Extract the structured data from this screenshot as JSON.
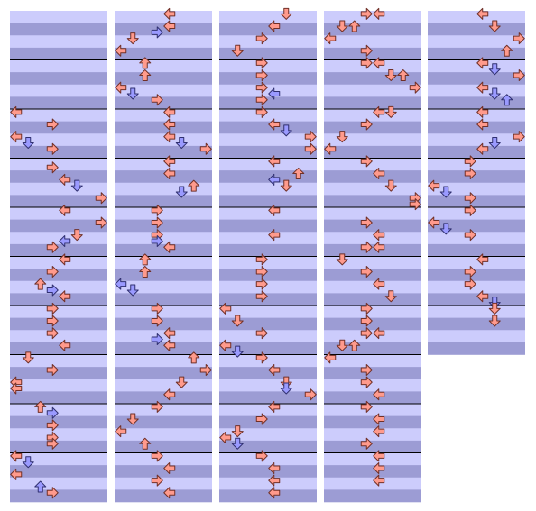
{
  "stepchart": {
    "lanes": [
      "left",
      "down",
      "up",
      "right",
      "left",
      "down",
      "up",
      "right"
    ],
    "colors": [
      "#ff9a8c",
      "#9a9aff"
    ],
    "columns": [
      {
        "measures": 10,
        "notes": [
          [
            2,
            0,
            0,
            0
          ],
          [
            2,
            2,
            3,
            0
          ],
          [
            2,
            4,
            0,
            0
          ],
          [
            2,
            5,
            1,
            1
          ],
          [
            2,
            6,
            3,
            0
          ],
          [
            3,
            1,
            3,
            0
          ],
          [
            3,
            3,
            4,
            0
          ],
          [
            3,
            4,
            5,
            1
          ],
          [
            3,
            6,
            7,
            0
          ],
          [
            4,
            0,
            4,
            0
          ],
          [
            4,
            2,
            7,
            0
          ],
          [
            4,
            4,
            5,
            0
          ],
          [
            4,
            5,
            4,
            1
          ],
          [
            4,
            6,
            3,
            0
          ],
          [
            5,
            0,
            4,
            0
          ],
          [
            5,
            2,
            3,
            0
          ],
          [
            5,
            4,
            2,
            0
          ],
          [
            5,
            5,
            3,
            1
          ],
          [
            5,
            6,
            4,
            0
          ],
          [
            6,
            0,
            3,
            0
          ],
          [
            6,
            2,
            3,
            0
          ],
          [
            6,
            4,
            3,
            0
          ],
          [
            6,
            6,
            4,
            0
          ],
          [
            7,
            0,
            1,
            0
          ],
          [
            7,
            2,
            3,
            0
          ],
          [
            7,
            4,
            0,
            0
          ],
          [
            7,
            5,
            0,
            0
          ],
          [
            8,
            0,
            2,
            0
          ],
          [
            8,
            1,
            3,
            1
          ],
          [
            8,
            3,
            3,
            0
          ],
          [
            8,
            5,
            3,
            0
          ],
          [
            8,
            6,
            3,
            0
          ],
          [
            9,
            0,
            0,
            0
          ],
          [
            9,
            1,
            1,
            1
          ],
          [
            9,
            3,
            0,
            0
          ],
          [
            9,
            5,
            2,
            1
          ],
          [
            9,
            6,
            3,
            0
          ]
        ]
      },
      {
        "measures": 10,
        "notes": [
          [
            0,
            0,
            4,
            0
          ],
          [
            0,
            2,
            4,
            0
          ],
          [
            0,
            3,
            3,
            1
          ],
          [
            0,
            4,
            1,
            0
          ],
          [
            0,
            6,
            0,
            0
          ],
          [
            1,
            0,
            2,
            0
          ],
          [
            1,
            2,
            2,
            0
          ],
          [
            1,
            4,
            0,
            0
          ],
          [
            1,
            5,
            1,
            1
          ],
          [
            1,
            6,
            3,
            0
          ],
          [
            2,
            0,
            4,
            0
          ],
          [
            2,
            2,
            4,
            0
          ],
          [
            2,
            4,
            4,
            0
          ],
          [
            2,
            5,
            5,
            1
          ],
          [
            2,
            6,
            7,
            0
          ],
          [
            3,
            0,
            4,
            0
          ],
          [
            3,
            2,
            4,
            0
          ],
          [
            3,
            4,
            6,
            0
          ],
          [
            3,
            5,
            5,
            1
          ],
          [
            4,
            0,
            3,
            0
          ],
          [
            4,
            2,
            3,
            0
          ],
          [
            4,
            4,
            3,
            0
          ],
          [
            4,
            5,
            3,
            1
          ],
          [
            4,
            6,
            4,
            0
          ],
          [
            5,
            0,
            2,
            0
          ],
          [
            5,
            2,
            2,
            0
          ],
          [
            5,
            4,
            0,
            1
          ],
          [
            5,
            5,
            1,
            1
          ],
          [
            6,
            0,
            3,
            0
          ],
          [
            6,
            2,
            3,
            0
          ],
          [
            6,
            4,
            4,
            0
          ],
          [
            6,
            5,
            3,
            1
          ],
          [
            6,
            6,
            4,
            0
          ],
          [
            7,
            0,
            6,
            0
          ],
          [
            7,
            2,
            7,
            0
          ],
          [
            7,
            4,
            5,
            0
          ],
          [
            7,
            6,
            4,
            0
          ],
          [
            8,
            0,
            3,
            0
          ],
          [
            8,
            2,
            1,
            0
          ],
          [
            8,
            4,
            0,
            0
          ],
          [
            8,
            6,
            2,
            0
          ],
          [
            9,
            0,
            3,
            0
          ],
          [
            9,
            2,
            4,
            0
          ],
          [
            9,
            4,
            3,
            0
          ],
          [
            9,
            6,
            4,
            0
          ]
        ]
      },
      {
        "measures": 10,
        "notes": [
          [
            0,
            0,
            5,
            0
          ],
          [
            0,
            2,
            4,
            0
          ],
          [
            0,
            4,
            3,
            0
          ],
          [
            0,
            6,
            1,
            0
          ],
          [
            1,
            0,
            3,
            0
          ],
          [
            1,
            2,
            3,
            0
          ],
          [
            1,
            4,
            3,
            0
          ],
          [
            1,
            5,
            4,
            1
          ],
          [
            1,
            6,
            3,
            0
          ],
          [
            2,
            0,
            3,
            0
          ],
          [
            2,
            2,
            4,
            0
          ],
          [
            2,
            3,
            5,
            1
          ],
          [
            2,
            4,
            7,
            0
          ],
          [
            2,
            6,
            7,
            0
          ],
          [
            3,
            0,
            4,
            0
          ],
          [
            3,
            2,
            6,
            0
          ],
          [
            3,
            3,
            4,
            1
          ],
          [
            3,
            4,
            5,
            0
          ],
          [
            4,
            0,
            4,
            0
          ],
          [
            4,
            4,
            4,
            0
          ],
          [
            5,
            0,
            3,
            0
          ],
          [
            5,
            2,
            3,
            0
          ],
          [
            5,
            4,
            3,
            0
          ],
          [
            5,
            6,
            3,
            0
          ],
          [
            6,
            0,
            0,
            0
          ],
          [
            6,
            2,
            1,
            0
          ],
          [
            6,
            4,
            3,
            0
          ],
          [
            6,
            6,
            0,
            0
          ],
          [
            6,
            7,
            1,
            1
          ],
          [
            7,
            0,
            3,
            0
          ],
          [
            7,
            2,
            4,
            0
          ],
          [
            7,
            4,
            5,
            0
          ],
          [
            7,
            5,
            5,
            1
          ],
          [
            7,
            6,
            7,
            0
          ],
          [
            8,
            0,
            4,
            0
          ],
          [
            8,
            2,
            3,
            0
          ],
          [
            8,
            4,
            1,
            0
          ],
          [
            8,
            5,
            0,
            0
          ],
          [
            8,
            6,
            1,
            1
          ],
          [
            9,
            0,
            3,
            0
          ],
          [
            9,
            2,
            4,
            0
          ],
          [
            9,
            4,
            4,
            0
          ],
          [
            9,
            6,
            4,
            0
          ]
        ]
      },
      {
        "measures": 10,
        "notes": [
          [
            0,
            0,
            3,
            0
          ],
          [
            0,
            0,
            4,
            0
          ],
          [
            0,
            2,
            1,
            0
          ],
          [
            0,
            2,
            2,
            0
          ],
          [
            0,
            4,
            0,
            0
          ],
          [
            0,
            6,
            3,
            0
          ],
          [
            1,
            0,
            3,
            0
          ],
          [
            1,
            0,
            4,
            0
          ],
          [
            1,
            2,
            5,
            0
          ],
          [
            1,
            2,
            6,
            0
          ],
          [
            1,
            4,
            7,
            0
          ],
          [
            2,
            0,
            4,
            0
          ],
          [
            2,
            0,
            5,
            0
          ],
          [
            2,
            2,
            3,
            0
          ],
          [
            2,
            4,
            1,
            0
          ],
          [
            2,
            6,
            0,
            0
          ],
          [
            3,
            0,
            3,
            0
          ],
          [
            3,
            2,
            4,
            0
          ],
          [
            3,
            4,
            5,
            0
          ],
          [
            3,
            6,
            7,
            0
          ],
          [
            3,
            7,
            7,
            0
          ],
          [
            4,
            2,
            3,
            0
          ],
          [
            4,
            4,
            4,
            0
          ],
          [
            4,
            6,
            3,
            0
          ],
          [
            4,
            6,
            4,
            0
          ],
          [
            5,
            0,
            1,
            0
          ],
          [
            5,
            2,
            3,
            0
          ],
          [
            5,
            4,
            4,
            0
          ],
          [
            5,
            6,
            5,
            0
          ],
          [
            6,
            0,
            3,
            0
          ],
          [
            6,
            2,
            3,
            0
          ],
          [
            6,
            4,
            3,
            0
          ],
          [
            6,
            4,
            4,
            0
          ],
          [
            6,
            6,
            1,
            0
          ],
          [
            6,
            6,
            2,
            0
          ],
          [
            7,
            0,
            0,
            0
          ],
          [
            7,
            2,
            3,
            0
          ],
          [
            7,
            4,
            3,
            0
          ],
          [
            7,
            6,
            4,
            0
          ],
          [
            8,
            0,
            3,
            0
          ],
          [
            8,
            2,
            4,
            0
          ],
          [
            8,
            4,
            4,
            0
          ],
          [
            8,
            6,
            3,
            0
          ],
          [
            9,
            0,
            4,
            0
          ],
          [
            9,
            2,
            4,
            0
          ],
          [
            9,
            4,
            4,
            0
          ]
        ]
      },
      {
        "measures": 7,
        "notes": [
          [
            0,
            0,
            4,
            0
          ],
          [
            0,
            2,
            5,
            0
          ],
          [
            0,
            4,
            7,
            0
          ],
          [
            0,
            6,
            6,
            0
          ],
          [
            1,
            0,
            4,
            0
          ],
          [
            1,
            1,
            5,
            1
          ],
          [
            1,
            2,
            7,
            0
          ],
          [
            1,
            4,
            4,
            0
          ],
          [
            1,
            5,
            5,
            1
          ],
          [
            1,
            6,
            6,
            1
          ],
          [
            2,
            0,
            4,
            0
          ],
          [
            2,
            2,
            4,
            0
          ],
          [
            2,
            4,
            7,
            0
          ],
          [
            2,
            5,
            5,
            1
          ],
          [
            2,
            6,
            4,
            0
          ],
          [
            3,
            0,
            3,
            0
          ],
          [
            3,
            2,
            3,
            0
          ],
          [
            3,
            4,
            0,
            0
          ],
          [
            3,
            5,
            1,
            1
          ],
          [
            3,
            6,
            3,
            0
          ],
          [
            4,
            0,
            3,
            0
          ],
          [
            4,
            2,
            0,
            0
          ],
          [
            4,
            3,
            1,
            1
          ],
          [
            4,
            4,
            3,
            0
          ],
          [
            5,
            0,
            4,
            0
          ],
          [
            5,
            2,
            3,
            0
          ],
          [
            5,
            4,
            3,
            0
          ],
          [
            5,
            6,
            4,
            0
          ],
          [
            5,
            7,
            5,
            1
          ],
          [
            6,
            0,
            5,
            0
          ],
          [
            6,
            2,
            5,
            0
          ]
        ]
      }
    ]
  }
}
